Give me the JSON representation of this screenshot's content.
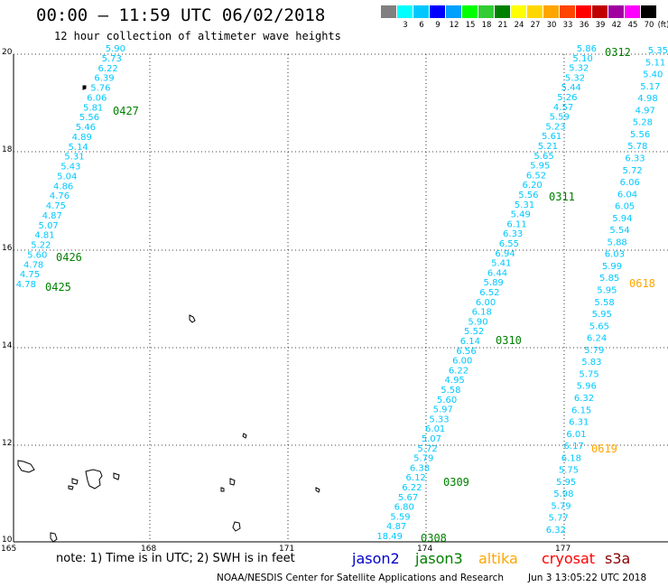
{
  "title": "00:00 – 11:59 UTC 06/02/2018",
  "subtitle": "12 hour collection of altimeter wave heights",
  "legend": {
    "unit": "(ft)",
    "bins": [
      {
        "label": "",
        "color": "#808080"
      },
      {
        "label": "3",
        "color": "#00ffff"
      },
      {
        "label": "6",
        "color": "#00c8ff"
      },
      {
        "label": "9",
        "color": "#0000ff"
      },
      {
        "label": "12",
        "color": "#00a0ff"
      },
      {
        "label": "15",
        "color": "#00ff00"
      },
      {
        "label": "18",
        "color": "#32cd32"
      },
      {
        "label": "21",
        "color": "#008000"
      },
      {
        "label": "24",
        "color": "#ffff00"
      },
      {
        "label": "27",
        "color": "#ffd700"
      },
      {
        "label": "30",
        "color": "#ffa500"
      },
      {
        "label": "33",
        "color": "#ff4500"
      },
      {
        "label": "36",
        "color": "#ff0000"
      },
      {
        "label": "39",
        "color": "#c00000"
      },
      {
        "label": "42",
        "color": "#a000a0"
      },
      {
        "label": "45",
        "color": "#ff00ff"
      },
      {
        "label": "70",
        "color": "#000000"
      }
    ]
  },
  "axes": {
    "lat_labels": [
      "20",
      "18",
      "16",
      "14",
      "12",
      "10"
    ],
    "lon_labels": [
      "165",
      "168",
      "171",
      "174",
      "177"
    ]
  },
  "colors": {
    "value_text": "#00c8ff",
    "time_jason3": "#008000",
    "time_altika": "#ffa500",
    "grid": "#000000"
  },
  "tracks": [
    {
      "values": [
        "5.90",
        "5.73",
        "6.22",
        "6.39",
        "5.76",
        "6.06",
        "5.81",
        "5.56",
        "5.46",
        "4.89",
        "5.14",
        "5.31",
        "5.43",
        "5.04",
        "4.86",
        "4.76",
        "4.75",
        "4.87",
        "5.07",
        "4.81",
        "5.22",
        "5.60",
        "4.78",
        "4.75",
        "4.78"
      ]
    },
    {
      "values": [
        "18.49",
        "4.87",
        "5.59",
        "6.80",
        "5.67",
        "6.22",
        "6.12",
        "6.38",
        "5.79",
        "5.72",
        "5.07",
        "6.01",
        "5.33",
        "5.97",
        "5.60",
        "5.58",
        "4.95",
        "6.22",
        "6.00",
        "6.56",
        "6.14",
        "5.52",
        "5.90",
        "6.18",
        "6.00",
        "6.52",
        "5.89",
        "6.44",
        "5.41",
        "6.94",
        "6.55",
        "6.33",
        "6.11",
        "5.49",
        "5.31",
        "5.56",
        "6.20",
        "6.52",
        "5.95",
        "5.65",
        "5.21",
        "5.61",
        "5.23",
        "5.59",
        "4.57",
        "5.26",
        "5.44",
        "5.32",
        "5.32",
        "5.10",
        "5.86"
      ]
    },
    {
      "values": [
        "6.32",
        "5.77",
        "5.79",
        "5.98",
        "5.95",
        "5.75",
        "6.18",
        "6.17",
        "6.01",
        "6.31",
        "6.15",
        "6.32",
        "5.96",
        "5.75",
        "5.83",
        "5.79",
        "6.24",
        "5.65",
        "5.95",
        "5.58",
        "5.95",
        "5.85",
        "5.99",
        "6.03",
        "5.88",
        "5.54",
        "5.94",
        "6.05",
        "6.04",
        "6.06",
        "5.72",
        "6.33",
        "5.78",
        "5.56",
        "5.28",
        "4.97",
        "4.98",
        "5.17",
        "5.40",
        "5.11",
        "5.35"
      ]
    }
  ],
  "time_labels": [
    {
      "text": "0427"
    },
    {
      "text": "0426"
    },
    {
      "text": "0425"
    },
    {
      "text": "0312"
    },
    {
      "text": "0311"
    },
    {
      "text": "0310"
    },
    {
      "text": "0309"
    },
    {
      "text": "0308"
    },
    {
      "text": "0618"
    },
    {
      "text": "0619"
    }
  ],
  "footer": {
    "note": "note: 1) Time is in UTC; 2) SWH is in feet",
    "satellites": [
      {
        "name": "jason2",
        "color": "#0000cc"
      },
      {
        "name": "jason3",
        "color": "#008000"
      },
      {
        "name": "altika",
        "color": "#ffa500"
      },
      {
        "name": "cryosat",
        "color": "#ff0000"
      },
      {
        "name": "s3a",
        "color": "#8b0000"
      }
    ],
    "credit": "NOAA/NESDIS Center for Satellite Applications and Research",
    "datestamp": "Jun  3 13:05:22 UTC 2018"
  }
}
